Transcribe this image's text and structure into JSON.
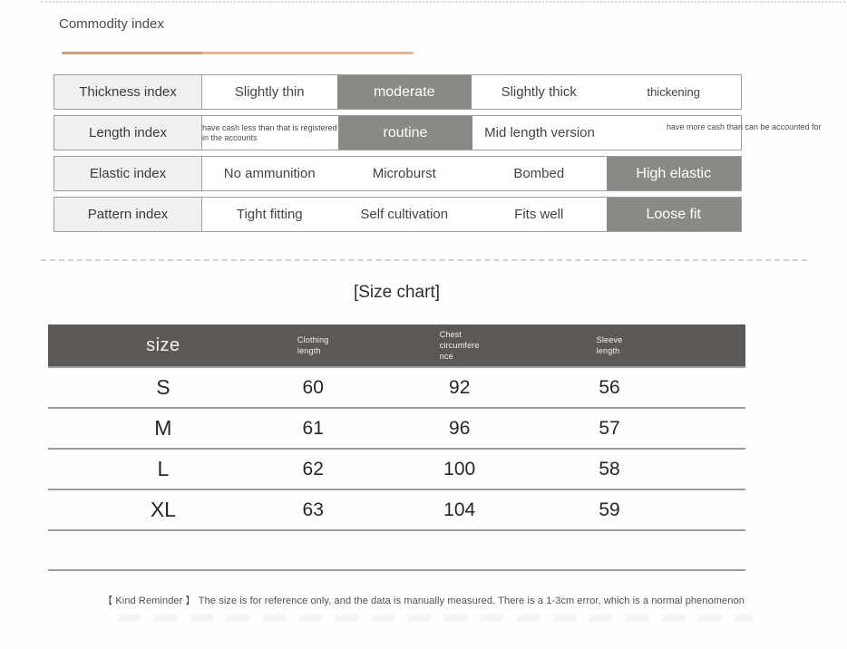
{
  "header": {
    "title": "Commodity index"
  },
  "commodity_index": {
    "rows": [
      {
        "label": "Thickness index",
        "options": [
          {
            "text": "Slightly thin"
          },
          {
            "text": "moderate",
            "hl": true
          },
          {
            "text": "Slightly thick"
          },
          {
            "text": "thickening",
            "variant": "compact"
          }
        ]
      },
      {
        "label": "Length index",
        "options": [
          {
            "text": "have cash less than that is registered in the accounts",
            "variant": "tiny"
          },
          {
            "text": "routine",
            "hl": true
          },
          {
            "text": "Mid length version"
          },
          {
            "text": "have more cash than can be accounted for",
            "variant": "tiny",
            "overflow": true
          }
        ]
      },
      {
        "label": "Elastic index",
        "options": [
          {
            "text": "No ammunition"
          },
          {
            "text": "Microburst"
          },
          {
            "text": "Bombed"
          },
          {
            "text": "High elastic",
            "hl": true
          }
        ]
      },
      {
        "label": "Pattern index",
        "options": [
          {
            "text": "Tight fitting"
          },
          {
            "text": "Self cultivation"
          },
          {
            "text": "Fits well"
          },
          {
            "text": "Loose fit",
            "hl": true
          }
        ]
      }
    ]
  },
  "size_chart": {
    "title": "[Size chart]",
    "columns": [
      "size",
      "Clothing\nlength",
      "Chest\ncircumfere\nnce",
      "Sleeve\nlength"
    ],
    "rows": [
      {
        "size": "S",
        "values": [
          "60",
          "92",
          "56"
        ]
      },
      {
        "size": "M",
        "values": [
          "61",
          "96",
          "57"
        ]
      },
      {
        "size": "L",
        "values": [
          "62",
          "100",
          "58"
        ]
      },
      {
        "size": "XL",
        "values": [
          "63",
          "104",
          "59"
        ]
      }
    ]
  },
  "footer": {
    "reminder": "【 Kind Reminder 】  The size is for reference only, and the data is manually measured. There is a 1-3cm error, which is a normal phenomenon"
  },
  "colors": {
    "highlight_bg": "#8b8986",
    "size_header_bg": "#5b5855",
    "label_bg": "#f1f0ee",
    "accent_tan": "#cd9e74",
    "border_gray": "#a09d9a"
  }
}
